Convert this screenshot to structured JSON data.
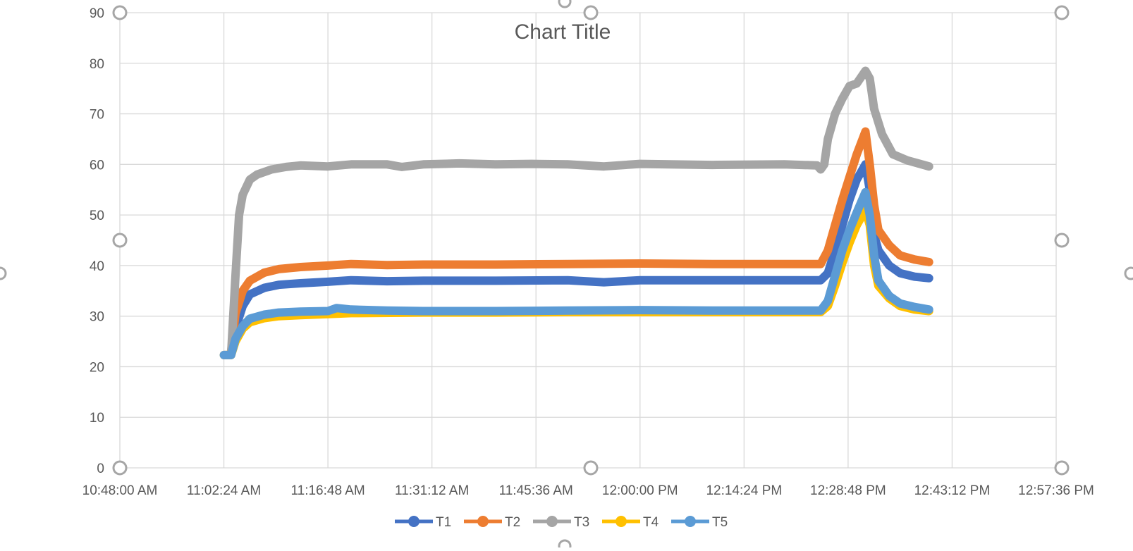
{
  "chart_data": {
    "type": "line",
    "title": "Chart Title",
    "xlabel": "",
    "ylabel": "",
    "x_axis": {
      "unit": "time",
      "min": "10:48:00 AM",
      "max": "12:57:36 PM",
      "ticks": [
        "10:48:00 AM",
        "11:02:24 AM",
        "11:16:48 AM",
        "11:31:12 AM",
        "11:45:36 AM",
        "12:00:00 PM",
        "12:14:24 PM",
        "12:28:48 PM",
        "12:43:12 PM",
        "12:57:36 PM"
      ]
    },
    "y_axis": {
      "min": 0,
      "max": 90,
      "ticks": [
        0,
        10,
        20,
        30,
        40,
        50,
        60,
        70,
        80,
        90
      ]
    },
    "grid": true,
    "legend_position": "bottom",
    "series": [
      {
        "name": "T1",
        "color": "#4472C4",
        "points": [
          [
            "11:02:24 AM",
            22.3
          ],
          [
            "11:03:24 AM",
            22.3
          ],
          [
            "11:04:00 AM",
            27.5
          ],
          [
            "11:05:00 AM",
            32
          ],
          [
            "11:06:00 AM",
            34.3
          ],
          [
            "11:08:00 AM",
            35.6
          ],
          [
            "11:10:00 AM",
            36.2
          ],
          [
            "11:13:00 AM",
            36.5
          ],
          [
            "11:16:48 AM",
            36.8
          ],
          [
            "11:20:00 AM",
            37.1
          ],
          [
            "11:25:00 AM",
            36.9
          ],
          [
            "11:30:00 AM",
            37
          ],
          [
            "11:40:00 AM",
            37
          ],
          [
            "11:50:00 AM",
            37.1
          ],
          [
            "11:55:00 AM",
            36.7
          ],
          [
            "12:00:00 PM",
            37.1
          ],
          [
            "12:10:00 PM",
            37.1
          ],
          [
            "12:20:00 PM",
            37.1
          ],
          [
            "12:25:00 PM",
            37.1
          ],
          [
            "12:26:00 PM",
            38.5
          ],
          [
            "12:27:00 PM",
            43
          ],
          [
            "12:28:00 PM",
            48
          ],
          [
            "12:29:00 PM",
            53
          ],
          [
            "12:30:00 PM",
            57
          ],
          [
            "12:31:12 PM",
            60
          ],
          [
            "12:31:48 PM",
            55
          ],
          [
            "12:32:24 PM",
            46
          ],
          [
            "12:33:00 PM",
            43
          ],
          [
            "12:34:30 PM",
            40
          ],
          [
            "12:36:00 PM",
            38.5
          ],
          [
            "12:38:00 PM",
            37.8
          ],
          [
            "12:40:00 PM",
            37.5
          ]
        ]
      },
      {
        "name": "T2",
        "color": "#ED7D31",
        "points": [
          [
            "11:03:24 AM",
            23
          ],
          [
            "11:04:00 AM",
            30.5
          ],
          [
            "11:05:00 AM",
            35
          ],
          [
            "11:06:00 AM",
            37
          ],
          [
            "11:08:00 AM",
            38.6
          ],
          [
            "11:10:00 AM",
            39.3
          ],
          [
            "11:13:00 AM",
            39.7
          ],
          [
            "11:16:48 AM",
            40
          ],
          [
            "11:20:00 AM",
            40.3
          ],
          [
            "11:25:00 AM",
            40.1
          ],
          [
            "11:30:00 AM",
            40.2
          ],
          [
            "11:40:00 AM",
            40.2
          ],
          [
            "11:50:00 AM",
            40.3
          ],
          [
            "12:00:00 PM",
            40.4
          ],
          [
            "12:10:00 PM",
            40.3
          ],
          [
            "12:20:00 PM",
            40.3
          ],
          [
            "12:25:00 PM",
            40.3
          ],
          [
            "12:26:00 PM",
            43
          ],
          [
            "12:27:00 PM",
            48
          ],
          [
            "12:28:00 PM",
            53
          ],
          [
            "12:29:00 PM",
            57.5
          ],
          [
            "12:30:00 PM",
            62
          ],
          [
            "12:31:12 PM",
            66.5
          ],
          [
            "12:31:48 PM",
            60
          ],
          [
            "12:32:24 PM",
            52
          ],
          [
            "12:33:00 PM",
            47
          ],
          [
            "12:34:30 PM",
            44
          ],
          [
            "12:36:00 PM",
            42
          ],
          [
            "12:38:00 PM",
            41.2
          ],
          [
            "12:40:00 PM",
            40.7
          ]
        ]
      },
      {
        "name": "T3",
        "color": "#A5A5A5",
        "points": [
          [
            "11:03:24 AM",
            22.5
          ],
          [
            "11:04:00 AM",
            38
          ],
          [
            "11:04:30 AM",
            50
          ],
          [
            "11:05:00 AM",
            54
          ],
          [
            "11:06:00 AM",
            57
          ],
          [
            "11:07:00 AM",
            58
          ],
          [
            "11:09:00 AM",
            59
          ],
          [
            "11:11:00 AM",
            59.5
          ],
          [
            "11:13:00 AM",
            59.8
          ],
          [
            "11:16:48 AM",
            59.6
          ],
          [
            "11:20:00 AM",
            60
          ],
          [
            "11:25:00 AM",
            60
          ],
          [
            "11:27:00 AM",
            59.5
          ],
          [
            "11:30:00 AM",
            60
          ],
          [
            "11:35:00 AM",
            60.2
          ],
          [
            "11:40:00 AM",
            60
          ],
          [
            "11:45:00 AM",
            60.1
          ],
          [
            "11:50:00 AM",
            60
          ],
          [
            "11:55:00 AM",
            59.6
          ],
          [
            "12:00:00 PM",
            60.1
          ],
          [
            "12:10:00 PM",
            59.9
          ],
          [
            "12:20:00 PM",
            60
          ],
          [
            "12:24:30 PM",
            59.8
          ],
          [
            "12:25:00 PM",
            59
          ],
          [
            "12:25:30 PM",
            60
          ],
          [
            "12:26:00 PM",
            65
          ],
          [
            "12:27:00 PM",
            70
          ],
          [
            "12:28:00 PM",
            73
          ],
          [
            "12:29:00 PM",
            75.5
          ],
          [
            "12:30:00 PM",
            76
          ],
          [
            "12:31:12 PM",
            78.5
          ],
          [
            "12:31:48 PM",
            77
          ],
          [
            "12:32:24 PM",
            71
          ],
          [
            "12:33:30 PM",
            66
          ],
          [
            "12:35:00 PM",
            62
          ],
          [
            "12:37:00 PM",
            60.8
          ],
          [
            "12:39:00 PM",
            60
          ],
          [
            "12:40:00 PM",
            59.6
          ]
        ]
      },
      {
        "name": "T4",
        "color": "#FFC000",
        "points": [
          [
            "11:02:24 AM",
            22.3
          ],
          [
            "11:03:24 AM",
            22.3
          ],
          [
            "11:04:00 AM",
            25
          ],
          [
            "11:05:00 AM",
            27.5
          ],
          [
            "11:06:00 AM",
            28.8
          ],
          [
            "11:08:00 AM",
            29.6
          ],
          [
            "11:10:00 AM",
            30
          ],
          [
            "11:13:00 AM",
            30.2
          ],
          [
            "11:16:48 AM",
            30.4
          ],
          [
            "11:20:00 AM",
            30.6
          ],
          [
            "11:30:00 AM",
            30.7
          ],
          [
            "11:40:00 AM",
            30.7
          ],
          [
            "11:50:00 AM",
            30.8
          ],
          [
            "12:00:00 PM",
            30.8
          ],
          [
            "12:10:00 PM",
            30.8
          ],
          [
            "12:20:00 PM",
            30.8
          ],
          [
            "12:25:00 PM",
            30.8
          ],
          [
            "12:26:00 PM",
            32
          ],
          [
            "12:27:00 PM",
            36
          ],
          [
            "12:28:00 PM",
            40.5
          ],
          [
            "12:29:00 PM",
            44.5
          ],
          [
            "12:30:00 PM",
            48
          ],
          [
            "12:31:12 PM",
            51
          ],
          [
            "12:31:48 PM",
            48
          ],
          [
            "12:32:24 PM",
            40
          ],
          [
            "12:33:00 PM",
            36
          ],
          [
            "12:34:30 PM",
            33.5
          ],
          [
            "12:36:00 PM",
            32
          ],
          [
            "12:38:00 PM",
            31.3
          ],
          [
            "12:40:00 PM",
            31
          ]
        ]
      },
      {
        "name": "T5",
        "color": "#5B9BD5",
        "points": [
          [
            "11:02:24 AM",
            22.3
          ],
          [
            "11:03:24 AM",
            22.3
          ],
          [
            "11:04:00 AM",
            25.5
          ],
          [
            "11:05:00 AM",
            28
          ],
          [
            "11:06:00 AM",
            29.5
          ],
          [
            "11:08:00 AM",
            30.3
          ],
          [
            "11:10:00 AM",
            30.7
          ],
          [
            "11:13:00 AM",
            30.9
          ],
          [
            "11:16:48 AM",
            31
          ],
          [
            "11:18:00 AM",
            31.6
          ],
          [
            "11:20:00 AM",
            31.3
          ],
          [
            "11:25:00 AM",
            31.1
          ],
          [
            "11:30:00 AM",
            31
          ],
          [
            "11:40:00 AM",
            31
          ],
          [
            "11:50:00 AM",
            31.1
          ],
          [
            "12:00:00 PM",
            31.2
          ],
          [
            "12:10:00 PM",
            31.1
          ],
          [
            "12:20:00 PM",
            31.1
          ],
          [
            "12:25:00 PM",
            31.1
          ],
          [
            "12:26:00 PM",
            33
          ],
          [
            "12:27:00 PM",
            38
          ],
          [
            "12:28:00 PM",
            43
          ],
          [
            "12:29:00 PM",
            47
          ],
          [
            "12:30:00 PM",
            50.5
          ],
          [
            "12:31:12 PM",
            54.5
          ],
          [
            "12:31:48 PM",
            50
          ],
          [
            "12:32:24 PM",
            42
          ],
          [
            "12:33:00 PM",
            37
          ],
          [
            "12:34:30 PM",
            34
          ],
          [
            "12:36:00 PM",
            32.5
          ],
          [
            "12:38:00 PM",
            31.8
          ],
          [
            "12:40:00 PM",
            31.3
          ]
        ]
      }
    ]
  },
  "colors": {
    "gridline": "#D9D9D9",
    "axis_text": "#595959",
    "selection_handle": "#A6A6A6"
  }
}
